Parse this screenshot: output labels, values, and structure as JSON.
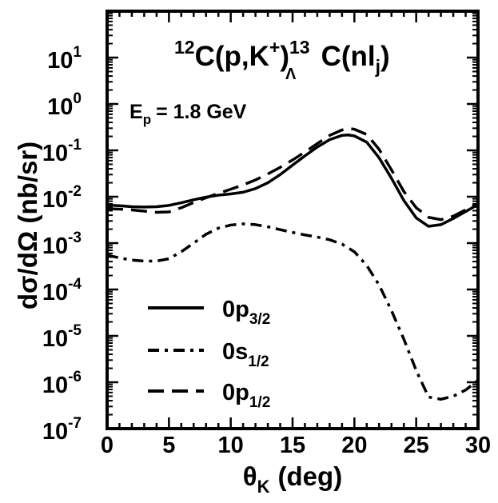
{
  "chart_data": {
    "type": "line",
    "title": "",
    "reaction": {
      "target_mass": "12",
      "target": "C",
      "paren_open": "(p,K",
      "k_charge": "+",
      "paren_close": ")",
      "product_mass": "13",
      "hyper_sub": "Λ",
      "product": "C(nl",
      "j_sub": "j",
      "close": ")"
    },
    "beam_energy": {
      "label": "E",
      "sub": "p",
      "value": "= 1.8 GeV"
    },
    "xlabel": {
      "main": "θ",
      "sub": "K",
      "unit": "(deg)"
    },
    "ylabel": "dσ/dΩ (nb/sr)",
    "xlim": [
      0,
      30
    ],
    "ylim_log10": [
      -7,
      2
    ],
    "yscale": "log",
    "x_ticks": [
      0,
      5,
      10,
      15,
      20,
      25,
      30
    ],
    "x_tick_labels": [
      "0",
      "5",
      "10",
      "15",
      "20",
      "25",
      "30"
    ],
    "y_ticks": [
      {
        "base": "10",
        "exp": "-7",
        "log": -7
      },
      {
        "base": "10",
        "exp": "-6",
        "log": -6
      },
      {
        "base": "10",
        "exp": "-5",
        "log": -5
      },
      {
        "base": "10",
        "exp": "-4",
        "log": -4
      },
      {
        "base": "10",
        "exp": "-3",
        "log": -3
      },
      {
        "base": "10",
        "exp": "-2",
        "log": -2
      },
      {
        "base": "10",
        "exp": "-1",
        "log": -1
      },
      {
        "base": "10",
        "exp": "0",
        "log": 0
      },
      {
        "base": "10",
        "exp": "1",
        "log": 1
      }
    ],
    "legend_position": "bottom-left",
    "series": [
      {
        "name": "0p3/2",
        "legend_main": "0p",
        "legend_sub": "3/2",
        "style": "solid",
        "points": [
          [
            0,
            0.0066
          ],
          [
            1,
            0.0064
          ],
          [
            2,
            0.0061
          ],
          [
            3,
            0.006
          ],
          [
            4,
            0.0061
          ],
          [
            5,
            0.0065
          ],
          [
            6,
            0.0074
          ],
          [
            7,
            0.0086
          ],
          [
            8,
            0.0098
          ],
          [
            9,
            0.0108
          ],
          [
            10,
            0.0115
          ],
          [
            11,
            0.0125
          ],
          [
            12,
            0.015
          ],
          [
            13,
            0.02
          ],
          [
            14,
            0.03
          ],
          [
            15,
            0.048
          ],
          [
            16,
            0.076
          ],
          [
            17,
            0.118
          ],
          [
            18,
            0.17
          ],
          [
            19,
            0.21
          ],
          [
            19.5,
            0.215
          ],
          [
            20,
            0.205
          ],
          [
            21,
            0.15
          ],
          [
            22,
            0.069
          ],
          [
            23,
            0.025
          ],
          [
            24,
            0.0083
          ],
          [
            25,
            0.0035
          ],
          [
            26,
            0.0023
          ],
          [
            27,
            0.0025
          ],
          [
            28,
            0.0034
          ],
          [
            29,
            0.0048
          ],
          [
            30,
            0.0068
          ]
        ]
      },
      {
        "name": "0s1/2",
        "legend_main": "0s",
        "legend_sub": "1/2",
        "style": "dashdot",
        "points": [
          [
            0,
            0.00055
          ],
          [
            1,
            0.00048
          ],
          [
            2,
            0.00043
          ],
          [
            3,
            0.00041
          ],
          [
            4,
            0.00041
          ],
          [
            5,
            0.00046
          ],
          [
            6,
            0.00065
          ],
          [
            7,
            0.001
          ],
          [
            8,
            0.00155
          ],
          [
            9,
            0.0021
          ],
          [
            10,
            0.00245
          ],
          [
            11,
            0.0026
          ],
          [
            12,
            0.0025
          ],
          [
            13,
            0.00225
          ],
          [
            14,
            0.00195
          ],
          [
            15,
            0.0017
          ],
          [
            16,
            0.0015
          ],
          [
            17,
            0.00135
          ],
          [
            18,
            0.00118
          ],
          [
            19,
            0.00095
          ],
          [
            20,
            0.00065
          ],
          [
            21,
            0.00033
          ],
          [
            22,
            0.000125
          ],
          [
            23,
            3.5e-05
          ],
          [
            24,
            8.5e-06
          ],
          [
            25,
            1.8e-06
          ],
          [
            26,
            4.8e-07
          ],
          [
            27,
            4.3e-07
          ],
          [
            28,
            5e-07
          ],
          [
            29,
            6.8e-07
          ],
          [
            30,
            1.1e-06
          ]
        ]
      },
      {
        "name": "0p1/2",
        "legend_main": "0p",
        "legend_sub": "1/2",
        "style": "dashed",
        "points": [
          [
            0,
            0.0055
          ],
          [
            1,
            0.0054
          ],
          [
            2,
            0.0052
          ],
          [
            3,
            0.0049
          ],
          [
            4,
            0.0046
          ],
          [
            5,
            0.0047
          ],
          [
            6,
            0.0058
          ],
          [
            7,
            0.0075
          ],
          [
            8,
            0.0095
          ],
          [
            9,
            0.0118
          ],
          [
            10,
            0.0145
          ],
          [
            11,
            0.018
          ],
          [
            12,
            0.023
          ],
          [
            13,
            0.031
          ],
          [
            14,
            0.043
          ],
          [
            15,
            0.062
          ],
          [
            16,
            0.092
          ],
          [
            17,
            0.14
          ],
          [
            18,
            0.21
          ],
          [
            19,
            0.275
          ],
          [
            19.5,
            0.295
          ],
          [
            20,
            0.285
          ],
          [
            21,
            0.22
          ],
          [
            22,
            0.105
          ],
          [
            23,
            0.038
          ],
          [
            24,
            0.013
          ],
          [
            25,
            0.0058
          ],
          [
            26,
            0.0036
          ],
          [
            27,
            0.0032
          ],
          [
            28,
            0.0038
          ],
          [
            29,
            0.0052
          ],
          [
            30,
            0.0072
          ]
        ]
      }
    ]
  }
}
